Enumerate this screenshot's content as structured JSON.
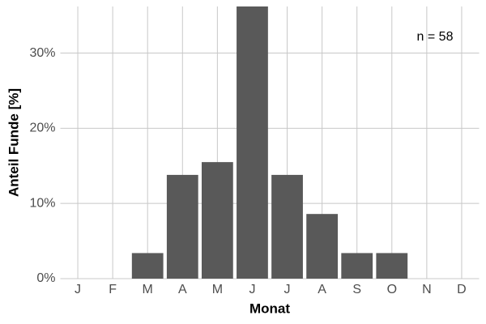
{
  "chart_data": {
    "type": "bar",
    "categories": [
      "J",
      "F",
      "M",
      "A",
      "M",
      "J",
      "J",
      "A",
      "S",
      "O",
      "N",
      "D"
    ],
    "values": [
      0,
      0,
      3.4,
      13.8,
      15.5,
      36.2,
      13.8,
      8.6,
      3.4,
      3.4,
      0,
      0
    ],
    "color": "#595959",
    "x_label": "Monat",
    "y_label": "Anteil Funde [%]",
    "annotation": "n = 58",
    "ylim": [
      0,
      36.2
    ],
    "yticks": [
      {
        "value": 0,
        "label": "0%"
      },
      {
        "value": 10,
        "label": "10%"
      },
      {
        "value": 20,
        "label": "20%"
      },
      {
        "value": 30,
        "label": "30%"
      }
    ],
    "grid": true
  }
}
